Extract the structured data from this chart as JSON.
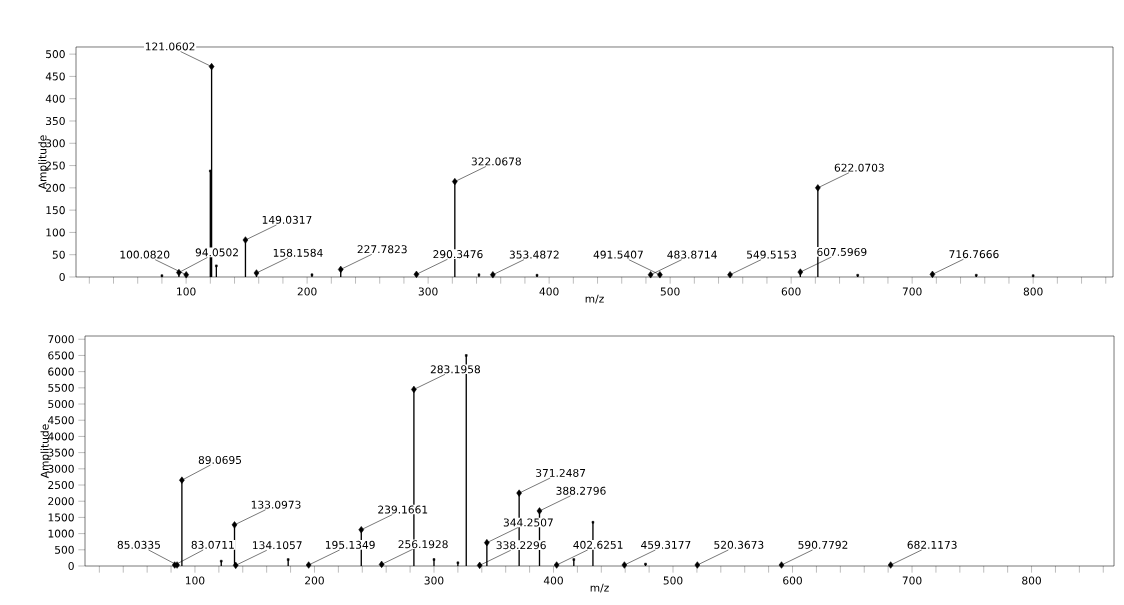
{
  "chart_data": [
    {
      "type": "lollipop",
      "xlabel": "m/z",
      "ylabel": "Amplitude",
      "xlim": [
        9,
        866
      ],
      "ylim": [
        0,
        516
      ],
      "xticks": [
        {
          "value": 20,
          "label": null
        },
        {
          "value": 40,
          "label": null
        },
        {
          "value": 60,
          "label": null
        },
        {
          "value": 80,
          "label": null
        },
        100,
        {
          "value": 120,
          "label": null
        },
        {
          "value": 140,
          "label": null
        },
        {
          "value": 160,
          "label": null
        },
        {
          "value": 180,
          "label": null
        },
        200,
        {
          "value": 220,
          "label": null
        },
        {
          "value": 240,
          "label": null
        },
        {
          "value": 260,
          "label": null
        },
        {
          "value": 280,
          "label": null
        },
        300,
        {
          "value": 320,
          "label": null
        },
        {
          "value": 340,
          "label": null
        },
        {
          "value": 360,
          "label": null
        },
        {
          "value": 380,
          "label": null
        },
        400,
        {
          "value": 420,
          "label": null
        },
        {
          "value": 440,
          "label": null
        },
        {
          "value": 460,
          "label": null
        },
        {
          "value": 480,
          "label": null
        },
        500,
        {
          "value": 520,
          "label": null
        },
        {
          "value": 540,
          "label": null
        },
        {
          "value": 560,
          "label": null
        },
        {
          "value": 580,
          "label": null
        },
        600,
        {
          "value": 620,
          "label": null
        },
        {
          "value": 640,
          "label": null
        },
        {
          "value": 660,
          "label": null
        },
        {
          "value": 680,
          "label": null
        },
        700,
        {
          "value": 720,
          "label": null
        },
        {
          "value": 740,
          "label": null
        },
        {
          "value": 760,
          "label": null
        },
        {
          "value": 780,
          "label": null
        },
        800,
        {
          "value": 820,
          "label": null
        },
        {
          "value": 840,
          "label": null
        },
        {
          "value": 860,
          "label": null
        }
      ],
      "yticks": [
        0,
        50,
        100,
        150,
        200,
        250,
        300,
        350,
        400,
        450,
        500
      ],
      "series": [
        {
          "marker": "diamond",
          "color": "#000000",
          "x": [
            100.082,
            94.0502,
            121.0602,
            149.0317,
            158.1584,
            227.7823,
            290.3476,
            322.0678,
            353.4872,
            491.5407,
            483.8714,
            549.5153,
            607.5969,
            622.0703,
            716.7666
          ],
          "values": [
            5,
            10,
            472,
            83,
            9,
            17,
            6,
            214,
            5,
            5,
            5,
            5,
            11,
            200,
            6
          ]
        },
        {
          "marker": "square",
          "color": "#000000",
          "x": [
            80,
            120,
            125,
            204,
            342,
            390,
            655,
            753,
            800
          ],
          "values": [
            3,
            238,
            25,
            5,
            5,
            4,
            4,
            4,
            3
          ]
        }
      ],
      "annotations": [
        {
          "text": "100.0820",
          "x": 100.082,
          "y": 5
        },
        {
          "text": "94.0502",
          "x": 94.0502,
          "y": 10
        },
        {
          "text": "121.0602",
          "x": 121.0602,
          "y": 472
        },
        {
          "text": "149.0317",
          "x": 149.0317,
          "y": 83
        },
        {
          "text": "158.1584",
          "x": 158.1584,
          "y": 9
        },
        {
          "text": "227.7823",
          "x": 227.7823,
          "y": 17
        },
        {
          "text": "290.3476",
          "x": 290.3476,
          "y": 6
        },
        {
          "text": "322.0678",
          "x": 322.0678,
          "y": 214
        },
        {
          "text": "353.4872",
          "x": 353.4872,
          "y": 5
        },
        {
          "text": "491.5407",
          "x": 491.5407,
          "y": 5
        },
        {
          "text": "483.8714",
          "x": 483.8714,
          "y": 5
        },
        {
          "text": "549.5153",
          "x": 549.5153,
          "y": 5
        },
        {
          "text": "607.5969",
          "x": 607.5969,
          "y": 11
        },
        {
          "text": "622.0703",
          "x": 622.0703,
          "y": 200
        },
        {
          "text": "716.7666",
          "x": 716.7666,
          "y": 6
        }
      ]
    },
    {
      "type": "lollipop",
      "xlabel": "m/z",
      "ylabel": "Amplitude",
      "xlim": [
        8,
        869
      ],
      "ylim": [
        0,
        7100
      ],
      "xticks": [
        {
          "value": 20,
          "label": null
        },
        {
          "value": 40,
          "label": null
        },
        {
          "value": 60,
          "label": null
        },
        {
          "value": 80,
          "label": null
        },
        100,
        {
          "value": 120,
          "label": null
        },
        {
          "value": 140,
          "label": null
        },
        {
          "value": 160,
          "label": null
        },
        {
          "value": 180,
          "label": null
        },
        200,
        {
          "value": 220,
          "label": null
        },
        {
          "value": 240,
          "label": null
        },
        {
          "value": 260,
          "label": null
        },
        {
          "value": 280,
          "label": null
        },
        300,
        {
          "value": 320,
          "label": null
        },
        {
          "value": 340,
          "label": null
        },
        {
          "value": 360,
          "label": null
        },
        {
          "value": 380,
          "label": null
        },
        400,
        {
          "value": 420,
          "label": null
        },
        {
          "value": 440,
          "label": null
        },
        {
          "value": 460,
          "label": null
        },
        {
          "value": 480,
          "label": null
        },
        500,
        {
          "value": 520,
          "label": null
        },
        {
          "value": 540,
          "label": null
        },
        {
          "value": 560,
          "label": null
        },
        {
          "value": 580,
          "label": null
        },
        600,
        {
          "value": 620,
          "label": null
        },
        {
          "value": 640,
          "label": null
        },
        {
          "value": 660,
          "label": null
        },
        {
          "value": 680,
          "label": null
        },
        700,
        {
          "value": 720,
          "label": null
        },
        {
          "value": 740,
          "label": null
        },
        {
          "value": 760,
          "label": null
        },
        {
          "value": 780,
          "label": null
        },
        800,
        {
          "value": 820,
          "label": null
        },
        {
          "value": 840,
          "label": null
        },
        {
          "value": 860,
          "label": null
        }
      ],
      "yticks": [
        0,
        500,
        1000,
        1500,
        2000,
        2500,
        3000,
        3500,
        4000,
        4500,
        5000,
        5500,
        6000,
        6500,
        7000
      ],
      "series": [
        {
          "marker": "diamond",
          "color": "#000000",
          "x": [
            85.0335,
            83.0711,
            89.0695,
            133.0973,
            134.1057,
            195.1349,
            239.1661,
            256.1928,
            283.1958,
            338.2296,
            344.2507,
            371.2487,
            388.2796,
            402.6251,
            459.3177,
            520.3673,
            590.7792,
            682.1173
          ],
          "values": [
            30,
            30,
            2650,
            1270,
            20,
            30,
            1120,
            50,
            5450,
            20,
            720,
            2250,
            1700,
            30,
            30,
            30,
            30,
            30
          ]
        },
        {
          "marker": "square",
          "color": "#000000",
          "x": [
            122,
            178,
            300,
            320,
            327,
            417,
            433,
            477
          ],
          "values": [
            150,
            200,
            200,
            100,
            6500,
            200,
            1350,
            60
          ]
        }
      ],
      "annotations": [
        {
          "text": "85.0335",
          "x": 85.0335,
          "y": 30
        },
        {
          "text": "83.0711",
          "x": 83.0711,
          "y": 30
        },
        {
          "text": "89.0695",
          "x": 89.0695,
          "y": 2650
        },
        {
          "text": "133.0973",
          "x": 133.0973,
          "y": 1270
        },
        {
          "text": "134.1057",
          "x": 134.1057,
          "y": 20
        },
        {
          "text": "195.1349",
          "x": 195.1349,
          "y": 30
        },
        {
          "text": "239.1661",
          "x": 239.1661,
          "y": 1120
        },
        {
          "text": "256.1928",
          "x": 256.1928,
          "y": 50
        },
        {
          "text": "283.1958",
          "x": 283.1958,
          "y": 5450
        },
        {
          "text": "338.2296",
          "x": 338.2296,
          "y": 20
        },
        {
          "text": "344.2507",
          "x": 344.2507,
          "y": 720
        },
        {
          "text": "371.2487",
          "x": 371.2487,
          "y": 2250
        },
        {
          "text": "388.2796",
          "x": 388.2796,
          "y": 1700
        },
        {
          "text": "402.6251",
          "x": 402.6251,
          "y": 30
        },
        {
          "text": "459.3177",
          "x": 459.3177,
          "y": 30
        },
        {
          "text": "520.3673",
          "x": 520.3673,
          "y": 30
        },
        {
          "text": "590.7792",
          "x": 590.7792,
          "y": 30
        },
        {
          "text": "682.1173",
          "x": 682.1173,
          "y": 30
        }
      ]
    }
  ]
}
